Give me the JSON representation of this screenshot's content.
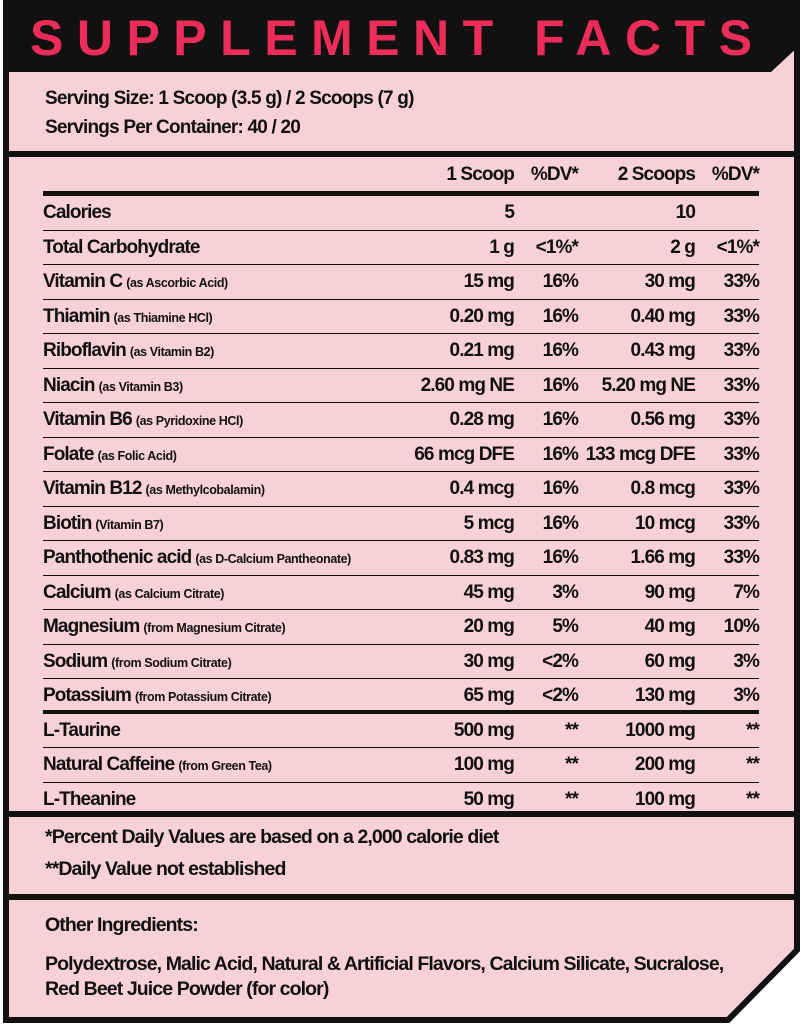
{
  "title": "SUPPLEMENT FACTS",
  "colors": {
    "accent": "#ec2d5a",
    "background": "#f7d0d8",
    "ink": "#111111"
  },
  "serving": {
    "size": "Serving Size: 1 Scoop (3.5 g) / 2 Scoops (7 g)",
    "per_container": "Servings Per Container: 40 / 20"
  },
  "table": {
    "headers": [
      "",
      "1 Scoop",
      "%DV*",
      "2 Scoops",
      "%DV*"
    ],
    "rows": [
      {
        "name": "Calories",
        "sub": "",
        "v1": "5",
        "dv1": "",
        "v2": "10",
        "dv2": ""
      },
      {
        "name": "Total Carbohydrate",
        "sub": "",
        "v1": "1 g",
        "dv1": "<1%*",
        "v2": "2 g",
        "dv2": "<1%*"
      },
      {
        "name": "Vitamin C",
        "sub": "(as Ascorbic Acid)",
        "v1": "15 mg",
        "dv1": "16%",
        "v2": "30 mg",
        "dv2": "33%"
      },
      {
        "name": "Thiamin",
        "sub": "(as Thiamine HCl)",
        "v1": "0.20 mg",
        "dv1": "16%",
        "v2": "0.40 mg",
        "dv2": "33%"
      },
      {
        "name": "Riboflavin",
        "sub": "(as Vitamin B2)",
        "v1": "0.21 mg",
        "dv1": "16%",
        "v2": "0.43 mg",
        "dv2": "33%"
      },
      {
        "name": "Niacin",
        "sub": "(as Vitamin B3)",
        "v1": "2.60 mg NE",
        "dv1": "16%",
        "v2": "5.20 mg NE",
        "dv2": "33%"
      },
      {
        "name": "Vitamin B6",
        "sub": "(as Pyridoxine HCl)",
        "v1": "0.28 mg",
        "dv1": "16%",
        "v2": "0.56 mg",
        "dv2": "33%"
      },
      {
        "name": "Folate",
        "sub": "(as Folic Acid)",
        "v1": "66 mcg DFE",
        "dv1": "16%",
        "v2": "133 mcg DFE",
        "dv2": "33%"
      },
      {
        "name": "Vitamin B12",
        "sub": "(as Methylcobalamin)",
        "v1": "0.4 mcg",
        "dv1": "16%",
        "v2": "0.8 mcg",
        "dv2": "33%"
      },
      {
        "name": "Biotin",
        "sub": "(Vitamin B7)",
        "v1": "5 mcg",
        "dv1": "16%",
        "v2": "10 mcg",
        "dv2": "33%"
      },
      {
        "name": "Panthothenic acid",
        "sub": "(as D-Calcium Pantheonate)",
        "v1": "0.83 mg",
        "dv1": "16%",
        "v2": "1.66 mg",
        "dv2": "33%"
      },
      {
        "name": "Calcium",
        "sub": "(as Calcium Citrate)",
        "v1": "45 mg",
        "dv1": "3%",
        "v2": "90 mg",
        "dv2": "7%"
      },
      {
        "name": "Magnesium",
        "sub": "(from Magnesium Citrate)",
        "v1": "20 mg",
        "dv1": "5%",
        "v2": "40 mg",
        "dv2": "10%"
      },
      {
        "name": "Sodium",
        "sub": "(from Sodium Citrate)",
        "v1": "30 mg",
        "dv1": "<2%",
        "v2": "60 mg",
        "dv2": "3%"
      },
      {
        "name": "Potassium",
        "sub": "(from Potassium Citrate)",
        "v1": "65 mg",
        "dv1": "<2%",
        "v2": "130 mg",
        "dv2": "3%"
      },
      {
        "name": "L-Taurine",
        "sub": "",
        "v1": "500 mg",
        "dv1": "**",
        "v2": "1000 mg",
        "dv2": "**"
      },
      {
        "name": "Natural Caffeine",
        "sub": "(from Green Tea)",
        "v1": "100 mg",
        "dv1": "**",
        "v2": "200 mg",
        "dv2": "**"
      },
      {
        "name": "L-Theanine",
        "sub": "",
        "v1": "50 mg",
        "dv1": "**",
        "v2": "100 mg",
        "dv2": "**"
      }
    ]
  },
  "footnotes": [
    "*Percent Daily Values are based on a 2,000 calorie diet",
    "**Daily Value not established"
  ],
  "other_ingredients": {
    "label": "Other Ingredients:",
    "lines": [
      "Polydextrose, Malic Acid, Natural & Artificial Flavors, Calcium Silicate, Sucralose,",
      "Red Beet Juice Powder (for color)"
    ]
  }
}
